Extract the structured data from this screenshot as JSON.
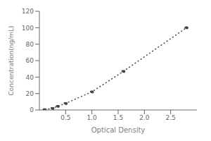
{
  "chart_data": {
    "type": "line",
    "x": [
      0.1,
      0.25,
      0.35,
      0.5,
      1.0,
      1.6,
      2.8
    ],
    "values": [
      0.5,
      2.0,
      4.5,
      8.0,
      22.0,
      47.0,
      100.0
    ],
    "xlabel": "Optical Density",
    "ylabel": "Concentration(ng/mL)",
    "xlim": [
      0,
      3.0
    ],
    "ylim": [
      0,
      120
    ],
    "xticks": [
      0.5,
      {
        "value": 1.0,
        "label": "1.0"
      },
      1.5,
      {
        "value": 2.0,
        "label": "2.0"
      },
      2.5
    ],
    "yticks": [
      0,
      20,
      40,
      60,
      80,
      100,
      120
    ],
    "color": "#444444",
    "line_style": "dotted",
    "marker": "dot",
    "grid": false
  }
}
